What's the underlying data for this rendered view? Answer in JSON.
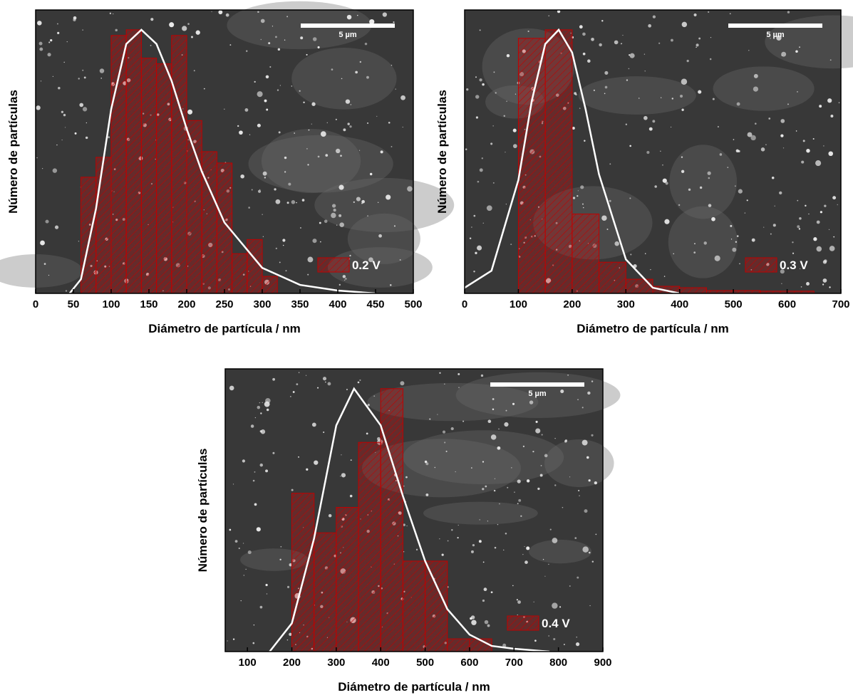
{
  "chart_data": [
    {
      "type": "histogram",
      "legend": "0.2 V",
      "scale_bar": "5 µm",
      "x_label": "Diámetro de partícula / nm",
      "y_label": "Número de partículas",
      "color": "#c00000",
      "bins": [
        60,
        80,
        100,
        120,
        140,
        160,
        180,
        200,
        220,
        240,
        260,
        280,
        300,
        320
      ],
      "values": [
        41,
        48,
        91,
        93,
        83,
        81,
        91,
        61,
        50,
        46,
        14,
        19,
        6
      ],
      "fit": {
        "color": "#ffffff",
        "x": [
          45,
          60,
          80,
          100,
          120,
          140,
          160,
          180,
          200,
          220,
          250,
          300,
          350,
          400,
          450
        ],
        "y": [
          0,
          5,
          30,
          65,
          88,
          93,
          88,
          75,
          58,
          43,
          25,
          9,
          3,
          1,
          0
        ]
      },
      "xlim": [
        0,
        500
      ],
      "ylim": [
        0,
        100
      ],
      "xticks": [
        0,
        50,
        100,
        150,
        200,
        250,
        300,
        350,
        400,
        450,
        500
      ]
    },
    {
      "type": "histogram",
      "legend": "0.3 V",
      "scale_bar": "5 µm",
      "x_label": "Diámetro de partícula / nm",
      "y_label": "Número de partículas",
      "color": "#c00000",
      "bins": [
        100,
        150,
        200,
        250,
        300,
        350,
        400,
        450,
        500,
        550,
        600,
        650
      ],
      "values": [
        90,
        93,
        28,
        11,
        5,
        2.5,
        2,
        1,
        1,
        0.8,
        0.8
      ],
      "fit": {
        "color": "#ffffff",
        "x": [
          0,
          50,
          100,
          125,
          150,
          175,
          200,
          225,
          250,
          300,
          350,
          400
        ],
        "y": [
          2,
          8,
          40,
          68,
          88,
          93,
          85,
          65,
          42,
          12,
          2,
          0
        ]
      },
      "xlim": [
        0,
        700
      ],
      "ylim": [
        0,
        100
      ],
      "xticks": [
        0,
        100,
        200,
        300,
        400,
        500,
        600,
        700
      ]
    },
    {
      "type": "histogram",
      "legend": "0.4 V",
      "scale_bar": "5 µm",
      "x_label": "Diámetro de partícula / nm",
      "y_label": "Número de partículas",
      "color": "#c00000",
      "bins": [
        200,
        250,
        300,
        350,
        400,
        450,
        500,
        550,
        600,
        650
      ],
      "values": [
        56,
        42,
        51,
        74,
        93,
        32,
        32,
        4.5,
        4.5
      ],
      "fit": {
        "color": "#ffffff",
        "x": [
          150,
          200,
          250,
          300,
          340,
          400,
          450,
          500,
          550,
          600,
          650,
          700,
          780
        ],
        "y": [
          0,
          10,
          40,
          80,
          93,
          80,
          55,
          32,
          15,
          6,
          2,
          1,
          0
        ]
      },
      "xlim": [
        50,
        900
      ],
      "ylim": [
        0,
        100
      ],
      "xticks": [
        100,
        200,
        300,
        400,
        500,
        600,
        700,
        800,
        900
      ]
    }
  ]
}
